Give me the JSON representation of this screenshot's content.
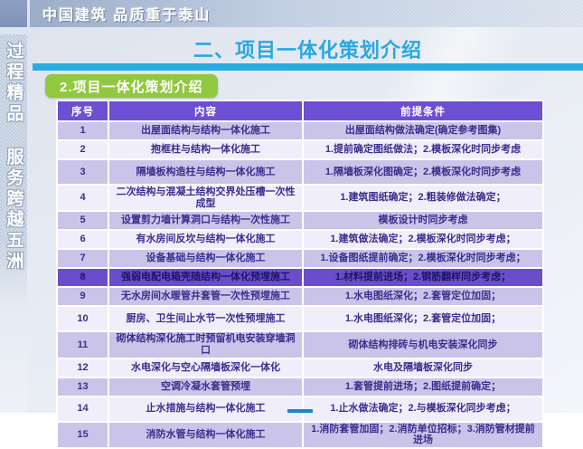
{
  "slide": {
    "top_banner": {
      "brand_text": "中国建筑 品质重于泰山"
    },
    "sidebar": {
      "vertical_text": "过程精品 服务跨越五洲"
    },
    "title": "二、项目一体化策划介绍",
    "section_badge": "2.项目一体化策划介绍",
    "colors": {
      "accent_cyan": "#29abe2",
      "title_blue": "#29a8e0",
      "badge_green": "#90c93f",
      "table_header_purple": "#6c50d3",
      "row_light_purple": "#cbc4e9",
      "row_pale_purple": "#f0eefa",
      "row_highlight_purple": "#6a4ec9"
    },
    "table": {
      "headers": [
        "序号",
        "内容",
        "前提条件"
      ],
      "rows": [
        {
          "no": "1",
          "content": "出屋面结构与结构一体化施工",
          "condition": "出屋面结构做法确定(确定参考图集)",
          "highlighted": false
        },
        {
          "no": "2",
          "content": "抱框柱与结构一体化施工",
          "condition": "1.提前确定图纸做法；2.模板深化时同步考虑",
          "highlighted": false
        },
        {
          "no": "3",
          "content": "隔墙板构造柱与结构一体化施工",
          "condition": "1.隔墙板深化图确定；2.模板深化时同步考虑",
          "highlighted": false
        },
        {
          "no": "4",
          "content": "二次结构与混凝土结构交界处压槽一次性成型",
          "condition": "1.建筑图纸确定；2.粗装修做法确定；",
          "highlighted": false
        },
        {
          "no": "5",
          "content": "设置剪力墙计算洞口与结构一次性施工",
          "condition": "模板设计时同步考虑",
          "highlighted": false
        },
        {
          "no": "6",
          "content": "有水房间反坎与结构一体化施工",
          "condition": "1.建筑做法确定；2.模板深化时同步考虑；",
          "highlighted": false
        },
        {
          "no": "7",
          "content": "设备基础与结构一体化施工",
          "condition": "1.设备图纸提前确定；2.模板深化时同步考虑；",
          "highlighted": false
        },
        {
          "no": "8",
          "content": "强弱电配电箱壳随结构一体化预埋施工",
          "condition": "1.材料提前进场；2.钢筋翻样同步考虑；",
          "highlighted": true
        },
        {
          "no": "9",
          "content": "无水房间水暖管井套管一次性预埋施工",
          "condition": "1.水电图纸深化；2.套管定位加固；",
          "highlighted": false
        },
        {
          "no": "10",
          "content": "厨房、卫生间止水节一次性预埋施工",
          "condition": "1.水电图纸深化；2.套管定位加固；",
          "highlighted": false
        },
        {
          "no": "11",
          "content": "砌体结构深化施工时预留机电安装穿墙洞口",
          "condition": "砌体结构排砖与机电安装深化同步",
          "highlighted": false
        },
        {
          "no": "12",
          "content": "水电深化与空心隔墙板深化一体化",
          "condition": "水电及隔墙板深化同步",
          "highlighted": false
        },
        {
          "no": "13",
          "content": "空调冷凝水套管预埋",
          "condition": "1.套管提前进场；2.图纸提前确定；",
          "highlighted": false
        },
        {
          "no": "14",
          "content": "止水措施与结构一体化施工",
          "condition": "1.止水做法确定；2.与模板深化同步考虑；",
          "highlighted": false
        },
        {
          "no": "15",
          "content": "消防水管与结构一体化施工",
          "condition": "1.消防套管加固；2.消防单位招标；3.消防管材提前进场",
          "highlighted": false
        }
      ]
    }
  }
}
